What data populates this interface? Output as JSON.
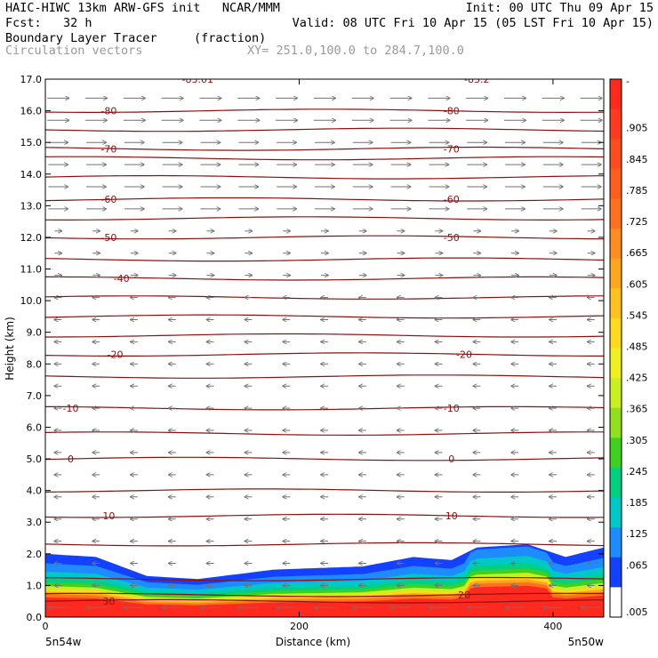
{
  "header": {
    "line1_left": "HAIC-HIWC 13km ARW-GFS init   NCAR/MMM",
    "line1_right": "Init: 00 UTC Thu 09 Apr 15",
    "line2_left": "Fcst:   32 h",
    "line2_right": "Valid: 08 UTC Fri 10 Apr 15 (05 LST Fri 10 Apr 15)",
    "field_name": "Boundary Layer Tracer",
    "field_units": "(fraction)",
    "vector_name": "Circulation vectors",
    "xy_info": "XY= 251.0,100.0 to 284.7,100.0"
  },
  "chart_data": {
    "type": "heatmap",
    "xlabel": "Distance (km)",
    "ylabel": "Height (km)",
    "xlim": [
      0,
      440
    ],
    "ylim": [
      0,
      17
    ],
    "x_ticks": [
      "0",
      "200",
      "400"
    ],
    "y_ticks": [
      "0.0",
      "1.0",
      "2.0",
      "3.0",
      "4.0",
      "5.0",
      "6.0",
      "7.0",
      "8.0",
      "9.0",
      "10.0",
      "11.0",
      "12.0",
      "13.0",
      "14.0",
      "15.0",
      "16.0",
      "17.0"
    ],
    "x_endpoint_labels": [
      "5n54w",
      "5n50w"
    ],
    "colorbar": {
      "labels": [
        "-",
        ".905",
        ".845",
        ".785",
        ".725",
        ".665",
        ".605",
        ".545",
        ".485",
        ".425",
        ".365",
        ".305",
        ".245",
        ".185",
        ".125",
        ".065",
        ".005"
      ],
      "colors": [
        "#ff2a1f",
        "#ff3a1f",
        "#ff4c1f",
        "#ff5e1f",
        "#ff7020",
        "#ff8c20",
        "#ffa620",
        "#ffc020",
        "#ffd820",
        "#f0f020",
        "#c8f020",
        "#90e020",
        "#40d020",
        "#00d080",
        "#00c8c8",
        "#1e8cff",
        "#1440ff",
        "#ffffff"
      ]
    },
    "temperature_contours": [
      {
        "label": "30",
        "height_km": 0.5
      },
      {
        "label": "20",
        "height_km": 0.7
      },
      {
        "label": "10",
        "height_km": 3.2
      },
      {
        "label": "0",
        "height_km": 5.0
      },
      {
        "label": "-10",
        "height_km": 6.6
      },
      {
        "label": "-20",
        "height_km": 8.3
      },
      {
        "label": "-40",
        "height_km": 10.7
      },
      {
        "label": "-50",
        "height_km": 12.0
      },
      {
        "label": "-60",
        "height_km": 13.2
      },
      {
        "label": "-70",
        "height_km": 14.8
      },
      {
        "label": "-80",
        "height_km": 16.0
      },
      {
        "label": "-83.01",
        "height_km": 17.0
      },
      {
        "label": "-83.2",
        "height_km": 17.0
      }
    ],
    "contour_label_x_km": {
      "30": [
        50
      ],
      "20": [
        330
      ],
      "10": [
        50,
        320
      ],
      "0": [
        20,
        320
      ],
      "-10": [
        20,
        320
      ],
      "-20": [
        55,
        330
      ],
      "-40": [
        60
      ],
      "-50": [
        50,
        320
      ],
      "-60": [
        50,
        320
      ],
      "-70": [
        50,
        320
      ],
      "-80": [
        50,
        320
      ],
      "-83.01": [
        120
      ],
      "-83.2": [
        340
      ]
    },
    "contour_levels_km": [
      0.5,
      0.7,
      1.2,
      2.3,
      3.2,
      4.0,
      5.0,
      5.8,
      6.6,
      7.6,
      8.3,
      8.9,
      9.5,
      10.1,
      10.7,
      11.3,
      12.0,
      12.6,
      13.2,
      13.9,
      14.5,
      14.8,
      15.4,
      16.0
    ],
    "tracer_top_km": [
      {
        "x": 0,
        "top": 2.0
      },
      {
        "x": 40,
        "top": 1.9
      },
      {
        "x": 80,
        "top": 1.3
      },
      {
        "x": 120,
        "top": 1.2
      },
      {
        "x": 180,
        "top": 1.5
      },
      {
        "x": 250,
        "top": 1.6
      },
      {
        "x": 290,
        "top": 1.9
      },
      {
        "x": 320,
        "top": 1.8
      },
      {
        "x": 340,
        "top": 2.2
      },
      {
        "x": 380,
        "top": 2.3
      },
      {
        "x": 410,
        "top": 1.9
      },
      {
        "x": 440,
        "top": 2.2
      }
    ],
    "wind_regimes": [
      {
        "from_km": 0,
        "to_km": 1.0,
        "direction": "westward",
        "strength": "strong"
      },
      {
        "from_km": 1.0,
        "to_km": 10.5,
        "direction": "westward",
        "strength": "weak"
      },
      {
        "from_km": 10.5,
        "to_km": 12.2,
        "direction": "eastward",
        "strength": "weak"
      },
      {
        "from_km": 12.2,
        "to_km": 17.0,
        "direction": "eastward",
        "strength": "moderate"
      }
    ]
  }
}
